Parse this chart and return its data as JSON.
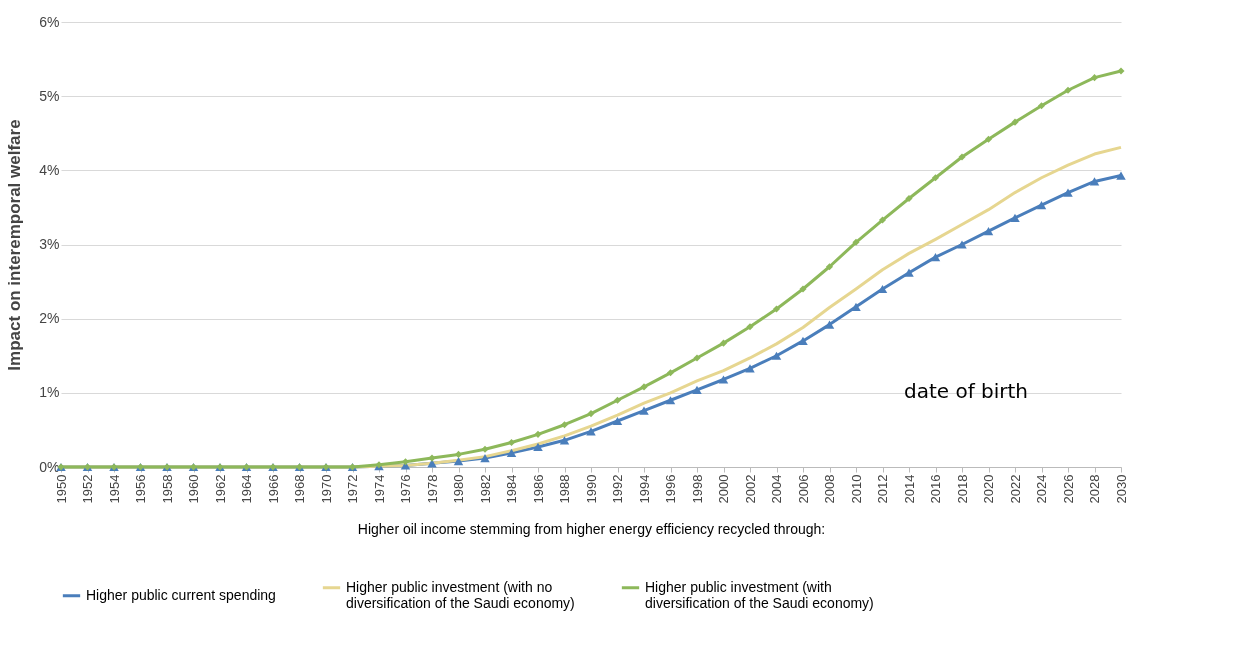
{
  "chart_data": {
    "type": "line",
    "ylabel": "Impact on interemporal welfare",
    "xlabel": "Higher oil income stemming from higher energy efficiency recycled through:",
    "x": [
      1950,
      1952,
      1954,
      1956,
      1958,
      1960,
      1962,
      1964,
      1966,
      1968,
      1970,
      1972,
      1974,
      1976,
      1978,
      1980,
      1982,
      1984,
      1986,
      1988,
      1990,
      1992,
      1994,
      1996,
      1998,
      2000,
      2002,
      2004,
      2006,
      2008,
      2010,
      2012,
      2014,
      2016,
      2018,
      2020,
      2022,
      2024,
      2026,
      2028,
      2030
    ],
    "series": [
      {
        "name": "Higher public current spending",
        "color": "#4a7ebb",
        "marker": "triangle",
        "values": [
          0,
          0,
          0,
          0,
          0,
          0,
          0,
          0,
          0,
          0,
          0,
          0,
          0.01,
          0.02,
          0.05,
          0.08,
          0.12,
          0.19,
          0.27,
          0.36,
          0.48,
          0.62,
          0.76,
          0.9,
          1.04,
          1.18,
          1.33,
          1.5,
          1.7,
          1.92,
          2.16,
          2.4,
          2.62,
          2.83,
          3.0,
          3.18,
          3.36,
          3.53,
          3.7,
          3.85,
          3.93
        ]
      },
      {
        "name": "Higher public investment (with no diversification of the Saudi economy)",
        "color": "#e6d690",
        "marker": "none",
        "values": [
          0,
          0,
          0,
          0,
          0,
          0,
          0,
          0,
          0,
          0,
          0,
          0,
          0.01,
          0.02,
          0.05,
          0.09,
          0.14,
          0.22,
          0.31,
          0.42,
          0.55,
          0.7,
          0.86,
          1.0,
          1.16,
          1.3,
          1.47,
          1.66,
          1.88,
          2.15,
          2.4,
          2.66,
          2.88,
          3.07,
          3.27,
          3.47,
          3.7,
          3.9,
          4.07,
          4.22,
          4.31
        ]
      },
      {
        "name": "Higher public investment (with diversification of the Saudi economy)",
        "color": "#8db85a",
        "marker": "diamond",
        "values": [
          0,
          0,
          0,
          0,
          0,
          0,
          0,
          0,
          0,
          0,
          0,
          0,
          0.03,
          0.07,
          0.12,
          0.17,
          0.24,
          0.33,
          0.44,
          0.57,
          0.72,
          0.9,
          1.08,
          1.27,
          1.47,
          1.67,
          1.89,
          2.13,
          2.4,
          2.7,
          3.03,
          3.33,
          3.62,
          3.9,
          4.18,
          4.42,
          4.65,
          4.87,
          5.08,
          5.25,
          5.34
        ]
      }
    ],
    "xlim": [
      1950,
      2030
    ],
    "xticks": [
      1950,
      1952,
      1954,
      1956,
      1958,
      1960,
      1962,
      1964,
      1966,
      1968,
      1970,
      1972,
      1974,
      1976,
      1978,
      1980,
      1982,
      1984,
      1986,
      1988,
      1990,
      1992,
      1994,
      1996,
      1998,
      2000,
      2002,
      2004,
      2006,
      2008,
      2010,
      2012,
      2014,
      2016,
      2018,
      2020,
      2022,
      2024,
      2026,
      2028,
      2030
    ],
    "ylim": [
      0,
      6
    ],
    "yticks": [
      {
        "value": 0,
        "label": "0%"
      },
      {
        "value": 1,
        "label": "1%"
      },
      {
        "value": 2,
        "label": "2%"
      },
      {
        "value": 3,
        "label": "3%"
      },
      {
        "value": 4,
        "label": "4%"
      },
      {
        "value": 5,
        "label": "5%"
      },
      {
        "value": 6,
        "label": "6%"
      }
    ],
    "grid": "y",
    "legend": "bottom",
    "line_style": "solid",
    "annotations": [
      "date of birth"
    ]
  }
}
